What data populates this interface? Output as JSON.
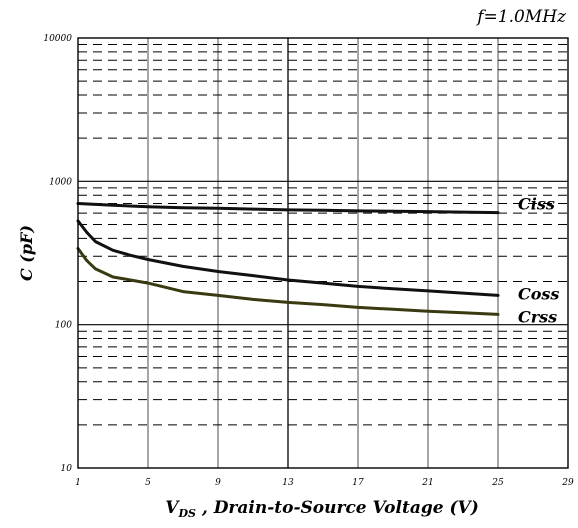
{
  "chart_data": {
    "type": "line",
    "annotation": "f=1.0MHz",
    "xlabel_main": "V",
    "xlabel_sub": "DS",
    "xlabel_rest": " , Drain-to-Source Voltage (V)",
    "ylabel": "C (pF)",
    "xlim": [
      1,
      29
    ],
    "ylim": [
      10,
      10000
    ],
    "yscale": "log",
    "grid": true,
    "x_ticks": [
      "1",
      "5",
      "9",
      "13",
      "17",
      "21",
      "25",
      "29"
    ],
    "y_ticks": [
      "10",
      "100",
      "1000",
      "10000"
    ],
    "series": [
      {
        "name": "Ciss",
        "color": "#111111",
        "x": [
          1,
          2,
          3,
          5,
          7,
          9,
          11,
          13,
          15,
          17,
          19,
          21,
          23,
          25
        ],
        "y": [
          700,
          690,
          680,
          665,
          655,
          648,
          640,
          632,
          628,
          622,
          618,
          615,
          610,
          605
        ]
      },
      {
        "name": "Coss",
        "color": "#111111",
        "x": [
          1,
          1.5,
          2,
          3,
          4,
          5,
          7,
          9,
          11,
          13,
          15,
          17,
          19,
          21,
          23,
          25
        ],
        "y": [
          530,
          440,
          380,
          330,
          305,
          285,
          255,
          235,
          220,
          205,
          195,
          185,
          178,
          172,
          166,
          160
        ]
      },
      {
        "name": "Crss",
        "color": "#3a3a12",
        "x": [
          1,
          1.5,
          2,
          3,
          4,
          5,
          7,
          9,
          11,
          13,
          15,
          17,
          19,
          21,
          23,
          25
        ],
        "y": [
          340,
          280,
          245,
          215,
          205,
          195,
          170,
          160,
          150,
          143,
          138,
          132,
          128,
          124,
          121,
          118
        ]
      }
    ]
  }
}
